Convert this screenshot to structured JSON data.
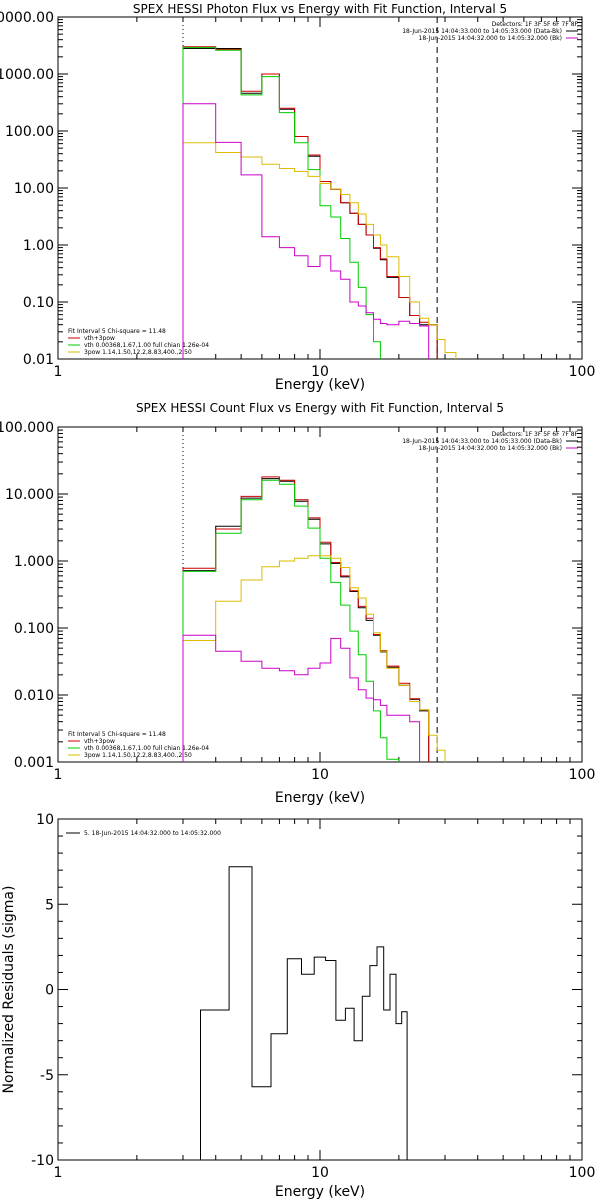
{
  "chart_data": [
    {
      "type": "line",
      "title": "SPEX HESSI Photon Flux vs Energy with Fit Function, Interval 5",
      "xlabel": "Energy (keV)",
      "ylabel": "",
      "xscale": "log",
      "yscale": "log",
      "xlim": [
        1,
        100
      ],
      "ylim": [
        0.01,
        10000
      ],
      "xticks": [
        "1",
        "10",
        "100"
      ],
      "yticks": [
        "0.01",
        "0.10",
        "1.00",
        "10.00",
        "100.00",
        "1000.00",
        "10000.00"
      ],
      "vlines": [
        {
          "x": 3,
          "style": "dotted"
        },
        {
          "x": 28,
          "style": "dashed"
        }
      ],
      "legend_topright": {
        "header": "Detectors: 1F 3F 5F 6F 7F 8F",
        "entries": [
          {
            "text": "18-Jun-2015 14:04:33.000 to 14:05:33.000 (Data-Bk)",
            "color": "#000000"
          },
          {
            "text": "18-Jun-2015 14:04:32.000 to 14:05:32.000 (Bk)",
            "color": "#cc00cc"
          }
        ]
      },
      "legend_bottomleft": {
        "header": "Fit Interval 5   Chi-square = 11.48",
        "entries": [
          {
            "text": "vth+3pow",
            "color": "#cc0000"
          },
          {
            "text": "vth 0.00368,1.67,1.00  full chian 1.26e-04",
            "color": "#00cc00"
          },
          {
            "text": "3pow 1.14,1.50,12.2,8.83,400.,2.50",
            "color": "#ddbb00"
          }
        ]
      },
      "bin_edges": [
        3,
        4,
        5,
        6,
        7,
        8,
        9,
        10,
        11,
        12,
        13,
        14,
        15,
        16,
        17,
        18,
        20,
        22,
        24,
        26,
        28,
        30,
        33
      ],
      "series": [
        {
          "name": "Data-Bk",
          "color": "#000000",
          "values": [
            2800,
            2800,
            460,
            1000,
            240,
            80,
            36,
            13,
            9.5,
            5.5,
            3.6,
            2.3,
            1.5,
            0.88,
            0.55,
            0.27,
            0.12,
            0.058,
            0.04,
            0.04,
            null,
            null
          ]
        },
        {
          "name": "vth+3pow",
          "color": "#cc0000",
          "values": [
            3000,
            2700,
            500,
            1000,
            250,
            80,
            38,
            13,
            9.5,
            5.5,
            3.6,
            2.3,
            1.5,
            0.9,
            0.57,
            0.28,
            0.12,
            0.058,
            0.044,
            0.04,
            null,
            null
          ]
        },
        {
          "name": "vth",
          "color": "#00cc00",
          "values": [
            2900,
            2600,
            430,
            900,
            210,
            62,
            21,
            4.9,
            3.1,
            1.3,
            0.5,
            0.18,
            0.06,
            0.02,
            0.008,
            null,
            null,
            null,
            null,
            null,
            null,
            null
          ]
        },
        {
          "name": "3pow",
          "color": "#ddbb00",
          "values": [
            62,
            42,
            35,
            26,
            22,
            19.5,
            16,
            12,
            9.6,
            7.7,
            5.5,
            3.5,
            2.3,
            1.5,
            1.0,
            0.62,
            0.28,
            0.1,
            0.052,
            0.04,
            0.022,
            0.013
          ]
        },
        {
          "name": "Bk",
          "color": "#cc00cc",
          "values": [
            300,
            63,
            17,
            1.4,
            0.9,
            0.65,
            0.42,
            0.65,
            0.35,
            0.25,
            0.1,
            0.085,
            0.065,
            0.05,
            0.042,
            0.04,
            0.046,
            0.042,
            0.038,
            null,
            null,
            null
          ]
        }
      ]
    },
    {
      "type": "line",
      "title": "SPEX HESSI Count Flux vs Energy with Fit Function, Interval 5",
      "xlabel": "Energy (keV)",
      "ylabel": "",
      "xscale": "log",
      "yscale": "log",
      "xlim": [
        1,
        100
      ],
      "ylim": [
        0.001,
        100
      ],
      "xticks": [
        "1",
        "10",
        "100"
      ],
      "yticks": [
        "0.001",
        "0.010",
        "0.100",
        "1.000",
        "10.000",
        "100.000"
      ],
      "vlines": [
        {
          "x": 3,
          "style": "dotted"
        },
        {
          "x": 28,
          "style": "dashed"
        }
      ],
      "legend_topright": {
        "header": "Detectors: 1F 3F 5F 6F 7F 8F",
        "entries": [
          {
            "text": "18-Jun-2015 14:04:33.000 to 14:05:33.000 (Data-Bk)",
            "color": "#000000"
          },
          {
            "text": "18-Jun-2015 14:04:32.000 to 14:05:32.000 (Bk)",
            "color": "#cc00cc"
          }
        ]
      },
      "legend_bottomleft": {
        "header": "Fit Interval 5   Chi-square = 11.48",
        "entries": [
          {
            "text": "vth+3pow",
            "color": "#cc0000"
          },
          {
            "text": "vth 0.00368,1.67,1.00  full chian 1.26e-04",
            "color": "#00cc00"
          },
          {
            "text": "3pow 1.14,1.50,12.2,8.83,400.,2.50",
            "color": "#ddbb00"
          }
        ]
      },
      "bin_edges": [
        3,
        4,
        5,
        6,
        7,
        8,
        9,
        10,
        11,
        12,
        13,
        14,
        15,
        16,
        17,
        18,
        20,
        22,
        24,
        26,
        28,
        30,
        33
      ],
      "series": [
        {
          "name": "Data-Bk",
          "color": "#000000",
          "values": [
            0.72,
            3.3,
            8.7,
            17,
            15.5,
            7.8,
            4.2,
            1.8,
            0.92,
            0.58,
            0.35,
            0.2,
            0.13,
            0.078,
            0.044,
            0.026,
            0.014,
            0.0086,
            0.0058,
            null,
            null,
            null
          ]
        },
        {
          "name": "vth+3pow",
          "color": "#cc0000",
          "values": [
            0.78,
            3.0,
            9.2,
            18,
            16,
            8.2,
            4.4,
            1.9,
            0.95,
            0.6,
            0.36,
            0.21,
            0.14,
            0.08,
            0.046,
            0.027,
            0.015,
            0.0088,
            0.006,
            null,
            null,
            null
          ]
        },
        {
          "name": "vth",
          "color": "#00cc00",
          "values": [
            0.7,
            2.6,
            8.2,
            16,
            14,
            6.6,
            3.1,
            1.1,
            0.48,
            0.22,
            0.09,
            0.04,
            0.016,
            0.0058,
            0.0023,
            0.0011,
            null,
            null,
            null,
            null,
            null,
            null
          ]
        },
        {
          "name": "3pow",
          "color": "#ddbb00",
          "values": [
            0.065,
            0.25,
            0.52,
            0.82,
            1.0,
            1.1,
            1.2,
            1.2,
            1.1,
            0.8,
            0.4,
            0.28,
            0.16,
            0.085,
            0.045,
            0.025,
            0.014,
            0.008,
            0.006,
            0.0025,
            0.0015,
            null
          ]
        },
        {
          "name": "Bk",
          "color": "#cc00cc",
          "values": [
            0.078,
            0.045,
            0.032,
            0.025,
            0.023,
            0.02,
            0.025,
            0.03,
            0.07,
            0.05,
            0.018,
            0.012,
            0.009,
            0.0085,
            0.007,
            0.005,
            0.005,
            0.004,
            null,
            null,
            null,
            null
          ]
        }
      ]
    },
    {
      "type": "line",
      "title": "",
      "xlabel": "Energy (keV)",
      "ylabel": "Normalized Residuals (sigma)",
      "xscale": "log",
      "yscale": "linear",
      "xlim": [
        1,
        100
      ],
      "ylim": [
        -10,
        10
      ],
      "xticks": [
        "1",
        "10",
        "100"
      ],
      "yticks": [
        "-10",
        "-5",
        "0",
        "5",
        "10"
      ],
      "legend": {
        "entries": [
          {
            "text": "5. 18-Jun-2015 14:04:32.000 to 14:05:32.000",
            "color": "#000000"
          }
        ]
      },
      "bin_edges": [
        3,
        3.5,
        4.5,
        5.5,
        6.5,
        7.5,
        8.5,
        9.5,
        10.5,
        11.5,
        12.5,
        13.5,
        14.5,
        15.5,
        16.5,
        17.5,
        18.5,
        19.5,
        20.5,
        21.5,
        23,
        25,
        27.5
      ],
      "series": [
        {
          "name": "5. 18-Jun-2015 14:04:32.000 to 14:05:32.000",
          "color": "#000000",
          "values": [
            -10,
            -1.2,
            7.2,
            -5.7,
            -2.6,
            1.8,
            0.9,
            1.9,
            1.7,
            -1.8,
            -1.1,
            -3.0,
            -0.4,
            1.4,
            2.5,
            -1.2,
            0.9,
            -2.0,
            -1.3,
            -10,
            null,
            null
          ]
        }
      ]
    }
  ]
}
